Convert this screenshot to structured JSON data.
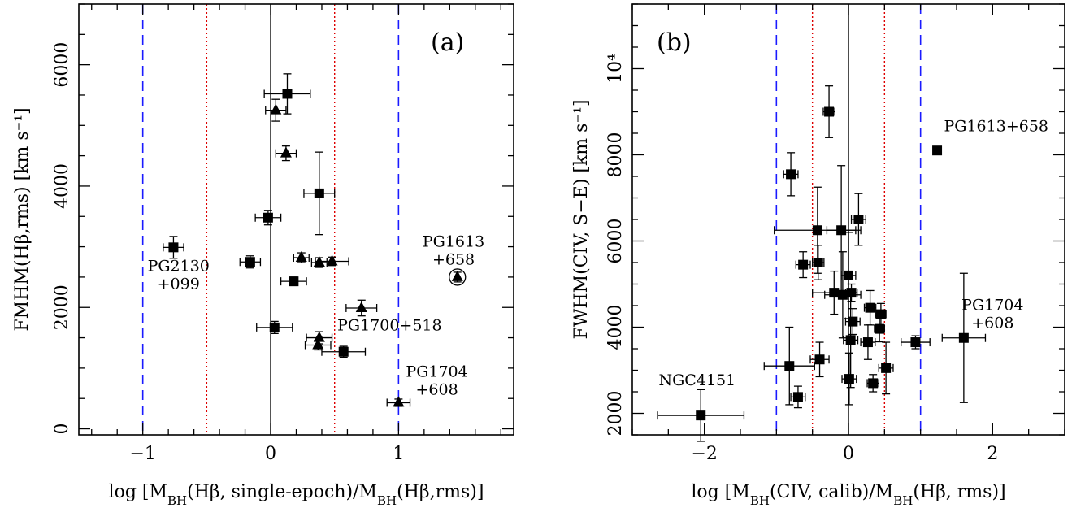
{
  "chart_data": [
    {
      "type": "scatter",
      "panel_label": "(a)",
      "xlabel": "log [M_BH(Hβ, single-epoch)/M_BH(Hβ,rms)]",
      "ylabel": "FMHM(Hβ,rms) [km s⁻¹]",
      "xlim": [
        -1.5,
        1.9
      ],
      "ylim": [
        -100,
        7000
      ],
      "xticks": [
        -1,
        0,
        1
      ],
      "xtick_labels": [
        "−1",
        "0",
        "1"
      ],
      "yticks": [
        0,
        2000,
        4000,
        6000
      ],
      "ytick_labels": [
        "0",
        "2000",
        "4000",
        "6000"
      ],
      "vlines": [
        {
          "x": -1,
          "style": "blue-dashed"
        },
        {
          "x": -0.5,
          "style": "red-dotted"
        },
        {
          "x": 0,
          "style": "black-solid"
        },
        {
          "x": 0.5,
          "style": "red-dotted"
        },
        {
          "x": 1,
          "style": "blue-dashed"
        }
      ],
      "series": [
        {
          "marker": "square",
          "points": [
            {
              "x": 0.13,
              "y": 5520,
              "xerr": 0.18,
              "yerr": 330
            },
            {
              "x": 0.38,
              "y": 3880,
              "xerr": 0.12,
              "yerr": 680
            },
            {
              "x": -0.02,
              "y": 3480,
              "xerr": 0.1,
              "yerr": 120
            },
            {
              "x": -0.76,
              "y": 2990,
              "xerr": 0.08,
              "yerr": 180
            },
            {
              "x": -0.16,
              "y": 2750,
              "xerr": 0.08,
              "yerr": 100
            },
            {
              "x": 0.18,
              "y": 2430,
              "xerr": 0.1,
              "yerr": 70
            },
            {
              "x": 0.03,
              "y": 1670,
              "xerr": 0.14,
              "yerr": 100
            },
            {
              "x": 0.57,
              "y": 1270,
              "xerr": 0.17,
              "yerr": 90
            }
          ]
        },
        {
          "marker": "triangle",
          "points": [
            {
              "x": 0.04,
              "y": 5250,
              "xerr": 0.08,
              "yerr": 180
            },
            {
              "x": 0.12,
              "y": 4540,
              "xerr": 0.08,
              "yerr": 120
            },
            {
              "x": 0.24,
              "y": 2820,
              "xerr": 0.06,
              "yerr": 80
            },
            {
              "x": 0.38,
              "y": 2740,
              "xerr": 0.06,
              "yerr": 80
            },
            {
              "x": 0.48,
              "y": 2760,
              "xerr": 0.13,
              "yerr": 70
            },
            {
              "x": 0.71,
              "y": 1990,
              "xerr": 0.12,
              "yerr": 130
            },
            {
              "x": 0.38,
              "y": 1500,
              "xerr": 0.1,
              "yerr": 100
            },
            {
              "x": 0.37,
              "y": 1380,
              "xerr": 0.1,
              "yerr": 80
            },
            {
              "x": 1.0,
              "y": 430,
              "xerr": 0.09,
              "yerr": 60
            },
            {
              "x": 1.46,
              "y": 2500,
              "xerr": 0,
              "yerr": 80,
              "circled": true
            }
          ]
        }
      ],
      "annotations": [
        {
          "lines": [
            "PG2130",
            "+099"
          ],
          "x": -0.72,
          "y": 2600
        },
        {
          "lines": [
            "PG1613",
            "+658"
          ],
          "x": 1.43,
          "y": 3000
        },
        {
          "lines": [
            "PG1700+518"
          ],
          "x": 0.93,
          "y": 1620
        },
        {
          "lines": [
            "PG1704",
            "+608"
          ],
          "x": 1.3,
          "y": 860
        }
      ]
    },
    {
      "type": "scatter",
      "panel_label": "(b)",
      "xlabel": "log [M_BH(CIV, calib)/M_BH(Hβ, rms)]",
      "ylabel": "FWHM(CIV, S−E) [km s⁻¹]",
      "xlim": [
        -3,
        3
      ],
      "ylim": [
        1500,
        11500
      ],
      "xticks": [
        -2,
        0,
        2
      ],
      "xtick_labels": [
        "−2",
        "0",
        "2"
      ],
      "yticks": [
        2000,
        4000,
        6000,
        8000,
        10000
      ],
      "ytick_labels": [
        "2000",
        "4000",
        "6000",
        "8000",
        "10⁴"
      ],
      "vlines": [
        {
          "x": -1,
          "style": "blue-dashed"
        },
        {
          "x": -0.5,
          "style": "red-dotted"
        },
        {
          "x": 0,
          "style": "black-solid"
        },
        {
          "x": 0.5,
          "style": "red-dotted"
        },
        {
          "x": 1,
          "style": "blue-dashed"
        }
      ],
      "series": [
        {
          "marker": "square",
          "points": [
            {
              "x": -0.27,
              "y": 9000,
              "xerr": 0.08,
              "yerr": 600
            },
            {
              "x": 1.23,
              "y": 8100,
              "xerr": 0,
              "yerr": 0
            },
            {
              "x": -0.8,
              "y": 7550,
              "xerr": 0.1,
              "yerr": 500
            },
            {
              "x": 0.14,
              "y": 6500,
              "xerr": 0.1,
              "yerr": 600
            },
            {
              "x": -0.43,
              "y": 6250,
              "xerr": 0.6,
              "yerr": 1000
            },
            {
              "x": -0.1,
              "y": 6250,
              "xerr": 0.2,
              "yerr": 1500
            },
            {
              "x": -0.63,
              "y": 5450,
              "xerr": 0.1,
              "yerr": 300
            },
            {
              "x": -0.42,
              "y": 5500,
              "xerr": 0.08,
              "yerr": 400
            },
            {
              "x": 0.0,
              "y": 5200,
              "xerr": 0.1,
              "yerr": 1000
            },
            {
              "x": -0.2,
              "y": 4800,
              "xerr": 0.3,
              "yerr": 500
            },
            {
              "x": -0.08,
              "y": 4750,
              "xerr": 0.25,
              "yerr": 1000
            },
            {
              "x": 0.04,
              "y": 4800,
              "xerr": 0.08,
              "yerr": 200
            },
            {
              "x": 0.3,
              "y": 4450,
              "xerr": 0.08,
              "yerr": 400
            },
            {
              "x": 0.45,
              "y": 4300,
              "xerr": 0.07,
              "yerr": 250
            },
            {
              "x": 0.06,
              "y": 4130,
              "xerr": 0.1,
              "yerr": 300
            },
            {
              "x": 0.43,
              "y": 3960,
              "xerr": 0.07,
              "yerr": 300
            },
            {
              "x": 0.03,
              "y": 3700,
              "xerr": 0.1,
              "yerr": 1100
            },
            {
              "x": 0.27,
              "y": 3650,
              "xerr": 0.1,
              "yerr": 400
            },
            {
              "x": 0.93,
              "y": 3650,
              "xerr": 0.2,
              "yerr": 150
            },
            {
              "x": 1.6,
              "y": 3750,
              "xerr": 0.3,
              "yerr": 1500
            },
            {
              "x": -0.82,
              "y": 3100,
              "xerr": 0.35,
              "yerr": 900
            },
            {
              "x": -0.4,
              "y": 3250,
              "xerr": 0.13,
              "yerr": 400
            },
            {
              "x": 0.52,
              "y": 3050,
              "xerr": 0.1,
              "yerr": 600
            },
            {
              "x": 0.01,
              "y": 2800,
              "xerr": 0.1,
              "yerr": 600
            },
            {
              "x": 0.34,
              "y": 2700,
              "xerr": 0.08,
              "yerr": 200
            },
            {
              "x": -0.7,
              "y": 2380,
              "xerr": 0.1,
              "yerr": 250
            },
            {
              "x": -2.05,
              "y": 1950,
              "xerr": 0.6,
              "yerr": 600
            }
          ]
        }
      ],
      "annotations": [
        {
          "lines": [
            "PG1613+658"
          ],
          "x": 2.05,
          "y": 8550
        },
        {
          "lines": [
            "NGC4151"
          ],
          "x": -2.1,
          "y": 2650
        },
        {
          "lines": [
            "PG1704",
            "+608"
          ],
          "x": 2.0,
          "y": 4400
        }
      ]
    }
  ]
}
